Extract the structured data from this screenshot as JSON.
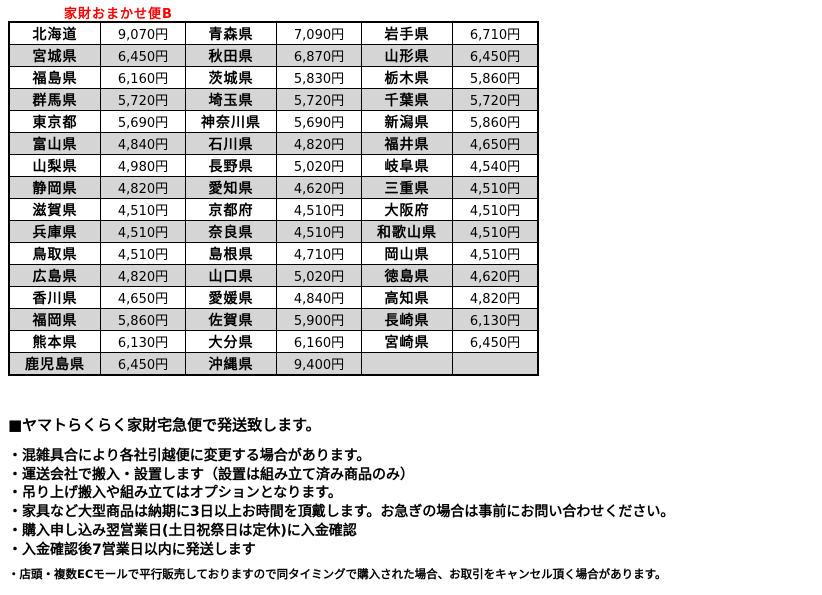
{
  "colors": {
    "accent_red": "#ff0000",
    "stripe_gray": "#d5d5d5",
    "border": "#000000"
  },
  "title": "家財おまかせ便B",
  "table": {
    "columns": [
      "prefecture",
      "price",
      "prefecture",
      "price",
      "prefecture",
      "price"
    ],
    "rows": [
      [
        "北海道",
        "9,070円",
        "青森県",
        "7,090円",
        "岩手県",
        "6,710円"
      ],
      [
        "宮城県",
        "6,450円",
        "秋田県",
        "6,870円",
        "山形県",
        "6,450円"
      ],
      [
        "福島県",
        "6,160円",
        "茨城県",
        "5,830円",
        "栃木県",
        "5,860円"
      ],
      [
        "群馬県",
        "5,720円",
        "埼玉県",
        "5,720円",
        "千葉県",
        "5,720円"
      ],
      [
        "東京都",
        "5,690円",
        "神奈川県",
        "5,690円",
        "新潟県",
        "5,860円"
      ],
      [
        "富山県",
        "4,840円",
        "石川県",
        "4,820円",
        "福井県",
        "4,650円"
      ],
      [
        "山梨県",
        "4,980円",
        "長野県",
        "5,020円",
        "岐阜県",
        "4,540円"
      ],
      [
        "静岡県",
        "4,820円",
        "愛知県",
        "4,620円",
        "三重県",
        "4,510円"
      ],
      [
        "滋賀県",
        "4,510円",
        "京都府",
        "4,510円",
        "大阪府",
        "4,510円"
      ],
      [
        "兵庫県",
        "4,510円",
        "奈良県",
        "4,510円",
        "和歌山県",
        "4,510円"
      ],
      [
        "鳥取県",
        "4,510円",
        "島根県",
        "4,710円",
        "岡山県",
        "4,510円"
      ],
      [
        "広島県",
        "4,820円",
        "山口県",
        "5,020円",
        "徳島県",
        "4,620円"
      ],
      [
        "香川県",
        "4,650円",
        "愛媛県",
        "4,840円",
        "高知県",
        "4,820円"
      ],
      [
        "福岡県",
        "5,860円",
        "佐賀県",
        "5,900円",
        "長崎県",
        "6,130円"
      ],
      [
        "熊本県",
        "6,130円",
        "大分県",
        "6,160円",
        "宮崎県",
        "6,450円"
      ],
      [
        "鹿児島県",
        "6,450円",
        "沖縄県",
        "9,400円",
        "",
        ""
      ]
    ]
  },
  "notes": {
    "heading": "■ヤマトらくらく家財宅急便で発送致します。",
    "bullets": [
      "・混雑具合により各社引越便に変更する場合があります。",
      "・運送会社で搬入・設置します（設置は組み立て済み商品のみ）",
      "・吊り上げ搬入や組み立てはオプションとなります。",
      "・家具など大型商品は納期に3日以上お時間を頂戴します。お急ぎの場合は事前にお問い合わせください。",
      "・購入申し込み翌営業日(土日祝祭日は定休)に入金確認",
      "・入金確認後7営業日以内に発送します"
    ],
    "footnote": "・店頭・複数ECモールで平行販売しておりますので同タイミングで購入された場合、お取引をキャンセル頂く場合があります。"
  }
}
